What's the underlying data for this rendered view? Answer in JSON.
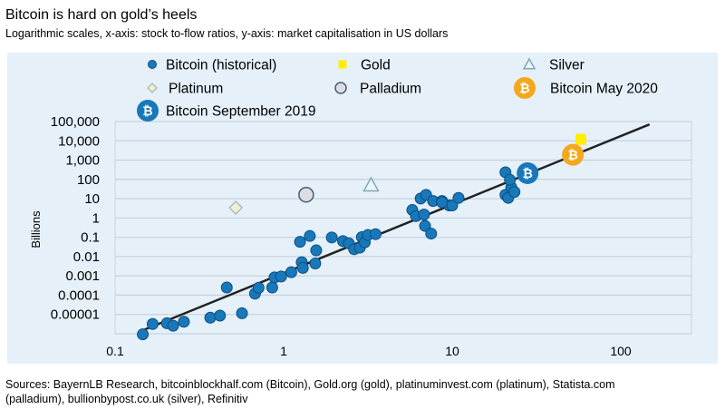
{
  "chart_data": {
    "type": "scatter",
    "title": "Bitcoin is hard on gold’s heels",
    "subtitle": "Logarithmic scales, x-axis: stock to-flow ratios, y-axis: market capitalisation in US dollars",
    "xlabel": "",
    "ylabel": "Billions",
    "xscale": "log",
    "yscale": "log",
    "xlim": [
      0.1,
      260
    ],
    "ylim": [
      1e-06,
      100000
    ],
    "xticks": [
      {
        "v": 0.1,
        "label": "0.1"
      },
      {
        "v": 1,
        "label": "1"
      },
      {
        "v": 10,
        "label": "10"
      },
      {
        "v": 100,
        "label": "100"
      }
    ],
    "yticks": [
      {
        "v": 100000,
        "label": "100,000"
      },
      {
        "v": 10000,
        "label": "10,000"
      },
      {
        "v": 1000,
        "label": "1,000"
      },
      {
        "v": 100,
        "label": "100"
      },
      {
        "v": 10,
        "label": "10"
      },
      {
        "v": 1,
        "label": "1"
      },
      {
        "v": 0.1,
        "label": "0.1"
      },
      {
        "v": 0.01,
        "label": "0.01"
      },
      {
        "v": 0.001,
        "label": "0.001"
      },
      {
        "v": 0.0001,
        "label": "0.0001"
      },
      {
        "v": 1e-05,
        "label": "0.00001"
      },
      {
        "v": 1e-06,
        "label": ""
      }
    ],
    "grid": true,
    "legend_placement": "top",
    "colors": {
      "bitcoin": "#1878b9",
      "bitcoin_edge": "#0d4e80",
      "gold": "#ffee00",
      "silver_edge": "#7fa9b8",
      "platinum_fill": "#ecefd9",
      "platinum_edge": "#b8bcae",
      "palladium_fill": "#dcdde3",
      "palladium_edge": "#4a5a7a",
      "coin_sep": "#1878b9",
      "coin_may": "#f4a81c",
      "panel": "#e5f0f9",
      "gridline": "#c7d3df",
      "trend": "#222222"
    },
    "series": [
      {
        "name": "Bitcoin (historical)",
        "marker": "circle",
        "points": [
          [
            0.146,
            9.3e-07
          ],
          [
            0.167,
            3.2e-06
          ],
          [
            0.203,
            3.5e-06
          ],
          [
            0.221,
            2.6e-06
          ],
          [
            0.256,
            4.2e-06
          ],
          [
            0.367,
            6.8e-06
          ],
          [
            0.419,
            8.7e-06
          ],
          [
            0.46,
            0.00025
          ],
          [
            0.566,
            1.15e-05
          ],
          [
            0.676,
            0.00012
          ],
          [
            0.71,
            0.00024
          ],
          [
            0.855,
            0.00025
          ],
          [
            0.883,
            0.00083
          ],
          [
            0.966,
            0.00093
          ],
          [
            1.11,
            0.00155
          ],
          [
            1.25,
            0.058
          ],
          [
            1.28,
            0.0051
          ],
          [
            1.3,
            0.0026
          ],
          [
            1.43,
            0.117
          ],
          [
            1.56,
            0.021
          ],
          [
            1.54,
            0.0044
          ],
          [
            1.93,
            0.098
          ],
          [
            2.25,
            0.063
          ],
          [
            2.44,
            0.048
          ],
          [
            2.62,
            0.024
          ],
          [
            2.83,
            0.029
          ],
          [
            2.91,
            0.102
          ],
          [
            3.03,
            0.055
          ],
          [
            3.16,
            0.132
          ],
          [
            3.51,
            0.145
          ],
          [
            5.8,
            2.6
          ],
          [
            6.1,
            1.26
          ],
          [
            6.8,
            1.5
          ],
          [
            6.9,
            0.39
          ],
          [
            7.5,
            0.155
          ],
          [
            6.5,
            10.2
          ],
          [
            7.0,
            15.8
          ],
          [
            7.7,
            7.6
          ],
          [
            8.7,
            7.6
          ],
          [
            9.6,
            4.5
          ],
          [
            8.7,
            6.5
          ],
          [
            10.0,
            4.5
          ],
          [
            10.9,
            11
          ],
          [
            20.7,
            234
          ],
          [
            20.7,
            15.8
          ],
          [
            21.5,
            11
          ],
          [
            22.4,
            39
          ],
          [
            23.4,
            22.4
          ],
          [
            22.0,
            95
          ]
        ]
      },
      {
        "name": "Gold",
        "marker": "square",
        "points": [
          [
            58,
            12000
          ]
        ]
      },
      {
        "name": "Silver",
        "marker": "triangle",
        "points": [
          [
            3.3,
            51
          ]
        ]
      },
      {
        "name": "Platinum",
        "marker": "diamond",
        "points": [
          [
            0.52,
            3.4
          ]
        ]
      },
      {
        "name": "Palladium",
        "marker": "circle-large",
        "points": [
          [
            1.36,
            16
          ]
        ]
      },
      {
        "name": "Bitcoin May 2020",
        "marker": "coin",
        "points": [
          [
            52,
            1900
          ]
        ]
      },
      {
        "name": "Bitcoin September 2019",
        "marker": "coin",
        "points": [
          [
            28,
            210
          ]
        ]
      }
    ],
    "trendline": {
      "from": [
        0.146,
        1.5e-06
      ],
      "to": [
        148,
        71000
      ]
    },
    "coin_glyph": "₿"
  },
  "source": "Sources: BayernLB Research, bitcoinblockhalf.com (Bitcoin), Gold.org (gold), platinuminvest.com (platinum), Statista.com",
  "source_line2": "(palladium), bullionbypost.co.uk (silver), Refinitiv"
}
